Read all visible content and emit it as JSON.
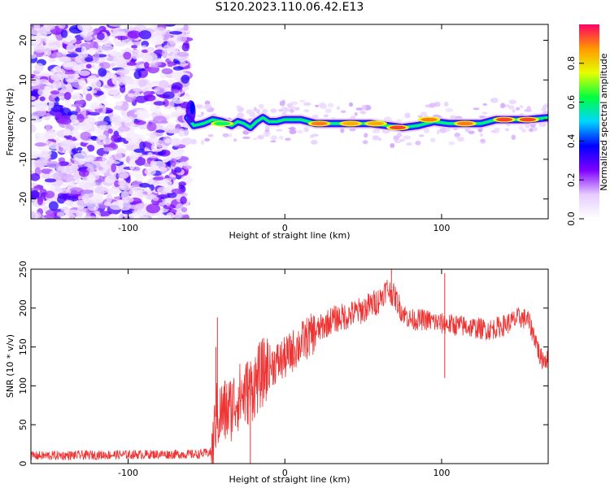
{
  "figure": {
    "title": "S120.2023.110.06.42.E13"
  },
  "chart_data": [
    {
      "type": "heatmap",
      "name": "spectrogram",
      "xlabel": "Height of straight line (km)",
      "ylabel": "Frequency (Hz)",
      "xlim": [
        -162,
        168
      ],
      "ylim": [
        -25,
        24
      ],
      "x_ticks": [
        -100,
        0,
        100
      ],
      "y_ticks": [
        -20,
        -10,
        0,
        10,
        20
      ],
      "grid": false,
      "colorbar": {
        "label": "Normalized spectral amplitude",
        "range": [
          0.0,
          1.0
        ],
        "ticks": [
          "0.0",
          "0.2",
          "0.4",
          "0.6",
          "0.8"
        ],
        "colors": [
          "#ffffff",
          "#e6ccff",
          "#7f00ff",
          "#0000ff",
          "#00d5ff",
          "#00ff40",
          "#e5ff00",
          "#ff9900",
          "#ff0066"
        ]
      },
      "noise_region_x": [
        -162,
        -62
      ],
      "ridge": {
        "x": [
          -62,
          -58,
          -52,
          -46,
          -40,
          -34,
          -30,
          -26,
          -22,
          -18,
          -14,
          -10,
          -5,
          0,
          10,
          20,
          30,
          45,
          55,
          65,
          75,
          85,
          95,
          105,
          115,
          125,
          135,
          145,
          155,
          168
        ],
        "y": [
          0.5,
          -1.5,
          -1,
          0,
          -0.5,
          -1.5,
          -0.5,
          -1,
          -2,
          -0.5,
          0.5,
          -0.5,
          -0.5,
          0,
          0,
          -1,
          -1,
          -1,
          -1,
          -1.5,
          -2,
          -1.5,
          -0.5,
          -1,
          -1,
          -1,
          0,
          0,
          0,
          0.5
        ]
      },
      "hot_spots": [
        {
          "x": -40,
          "y": -1,
          "amp": 0.6
        },
        {
          "x": 22,
          "y": -1,
          "amp": 0.9
        },
        {
          "x": 42,
          "y": -1,
          "amp": 0.85
        },
        {
          "x": 58,
          "y": -1,
          "amp": 0.85
        },
        {
          "x": 72,
          "y": -2,
          "amp": 0.95
        },
        {
          "x": 92,
          "y": 0,
          "amp": 0.9
        },
        {
          "x": 115,
          "y": -1,
          "amp": 0.9
        },
        {
          "x": 140,
          "y": 0,
          "amp": 0.95
        },
        {
          "x": 155,
          "y": 0,
          "amp": 0.95
        }
      ]
    },
    {
      "type": "line",
      "name": "snr",
      "xlabel": "Height of straight line (km)",
      "ylabel": "SNR (10 * v/v)",
      "xlim": [
        -162,
        168
      ],
      "ylim": [
        0,
        250
      ],
      "x_ticks": [
        -100,
        0,
        100
      ],
      "y_ticks": [
        0,
        50,
        100,
        150,
        200,
        250
      ],
      "grid": false,
      "series": [
        {
          "color": "#ee3333",
          "trend": {
            "x": [
              -162,
              -120,
              -80,
              -55,
              -46,
              -44,
              -40,
              -35,
              -30,
              -25,
              -20,
              -15,
              -10,
              0,
              10,
              20,
              30,
              40,
              50,
              60,
              65,
              70,
              75,
              80,
              90,
              100,
              110,
              120,
              130,
              140,
              150,
              155,
              160,
              163,
              168
            ],
            "y": [
              10,
              11,
              12,
              12,
              15,
              60,
              65,
              70,
              85,
              90,
              100,
              115,
              125,
              135,
              155,
              170,
              185,
              190,
              198,
              210,
              225,
              215,
              195,
              185,
              185,
              180,
              178,
              175,
              172,
              178,
              188,
              185,
              160,
              135,
              135
            ]
          },
          "spikes": [
            {
              "x": -43,
              "y": 188
            },
            {
              "x": -44,
              "y": 150
            },
            {
              "x": -22,
              "y": 0
            },
            {
              "x": 68,
              "y": 250
            },
            {
              "x": 102,
              "y": 245
            },
            {
              "x": 102,
              "y": 110
            }
          ]
        }
      ]
    }
  ]
}
